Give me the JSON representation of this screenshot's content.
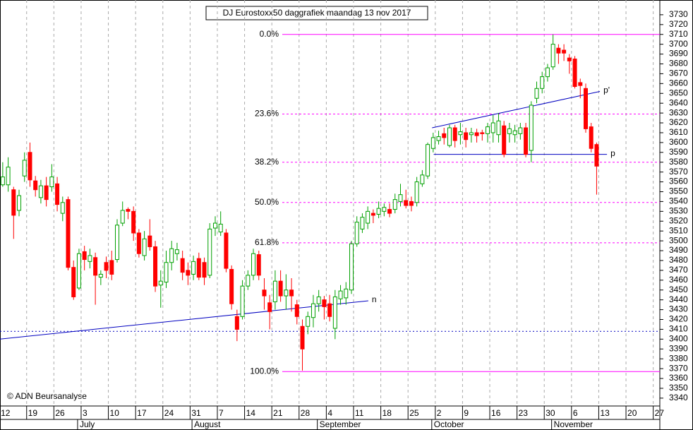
{
  "chart_data": {
    "type": "candlestick",
    "title": "DJ Eurostoxx50 daggrafiek maandag 13 nov 2017",
    "copyright": "© ADN Beursanalyse",
    "open": [
      3557,
      3557,
      3552,
      3531,
      3566,
      3590,
      3561,
      3544,
      3556,
      3555,
      3558,
      3528,
      3542,
      3473,
      3452,
      3489,
      3479,
      3483,
      3463,
      3478,
      3480,
      3481,
      3518,
      3532,
      3530,
      3508,
      3485,
      3505,
      3494,
      3455,
      3458,
      3478,
      3487,
      3482,
      3470,
      3466,
      3482,
      3478,
      3465,
      3513,
      3509,
      3508,
      3471,
      3423,
      3423,
      3454,
      3465,
      3486,
      3450,
      3437,
      3438,
      3459,
      3444,
      3450,
      3435,
      3413,
      3413,
      3422,
      3436,
      3440,
      3436,
      3411,
      3441,
      3442,
      3450,
      3497,
      3512,
      3518,
      3528,
      3527,
      3530,
      3532,
      3532,
      3540,
      3541,
      3540,
      3539,
      3558,
      3566,
      3594,
      3602,
      3609,
      3597,
      3615,
      3608,
      3610,
      3608,
      3610,
      3610,
      3609,
      3610,
      3608,
      3617,
      3609,
      3608,
      3609,
      3615,
      3592,
      3645,
      3655,
      3667,
      3677,
      3696,
      3694,
      3686,
      3685,
      3661,
      3655,
      3616,
      3598
    ],
    "high": [
      3580,
      3585,
      3555,
      3552,
      3590,
      3600,
      3566,
      3562,
      3565,
      3578,
      3565,
      3545,
      3545,
      3480,
      3492,
      3495,
      3492,
      3488,
      3470,
      3484,
      3490,
      3522,
      3540,
      3534,
      3535,
      3512,
      3510,
      3522,
      3500,
      3470,
      3490,
      3500,
      3498,
      3490,
      3478,
      3485,
      3488,
      3483,
      3518,
      3525,
      3530,
      3512,
      3475,
      3430,
      3460,
      3470,
      3492,
      3490,
      3462,
      3445,
      3470,
      3470,
      3466,
      3462,
      3440,
      3420,
      3428,
      3445,
      3450,
      3444,
      3445,
      3450,
      3455,
      3458,
      3500,
      3525,
      3528,
      3535,
      3532,
      3540,
      3538,
      3538,
      3548,
      3558,
      3552,
      3545,
      3565,
      3572,
      3600,
      3610,
      3612,
      3615,
      3618,
      3618,
      3620,
      3615,
      3615,
      3614,
      3613,
      3620,
      3628,
      3630,
      3622,
      3620,
      3618,
      3620,
      3620,
      3642,
      3662,
      3672,
      3680,
      3710,
      3700,
      3700,
      3690,
      3688,
      3665,
      3660,
      3620,
      3600
    ],
    "low": [
      3555,
      3550,
      3502,
      3525,
      3560,
      3555,
      3545,
      3538,
      3535,
      3550,
      3530,
      3520,
      3470,
      3440,
      3450,
      3470,
      3472,
      3435,
      3455,
      3462,
      3460,
      3478,
      3515,
      3522,
      3500,
      3483,
      3480,
      3490,
      3448,
      3432,
      3452,
      3470,
      3480,
      3460,
      3455,
      3460,
      3460,
      3455,
      3462,
      3505,
      3505,
      3468,
      3430,
      3398,
      3420,
      3450,
      3460,
      3460,
      3430,
      3410,
      3430,
      3438,
      3430,
      3428,
      3415,
      3368,
      3405,
      3412,
      3428,
      3420,
      3418,
      3400,
      3435,
      3435,
      3446,
      3494,
      3508,
      3512,
      3518,
      3523,
      3525,
      3524,
      3528,
      3535,
      3533,
      3530,
      3535,
      3555,
      3563,
      3590,
      3598,
      3598,
      3595,
      3595,
      3598,
      3595,
      3600,
      3600,
      3602,
      3600,
      3600,
      3600,
      3585,
      3600,
      3600,
      3603,
      3585,
      3580,
      3640,
      3650,
      3662,
      3674,
      3680,
      3683,
      3670,
      3655,
      3645,
      3610,
      3590,
      3547
    ],
    "close": [
      3565,
      3575,
      3526,
      3546,
      3582,
      3562,
      3552,
      3556,
      3542,
      3565,
      3537,
      3539,
      3473,
      3443,
      3487,
      3481,
      3485,
      3465,
      3466,
      3470,
      3466,
      3516,
      3531,
      3530,
      3508,
      3487,
      3502,
      3494,
      3454,
      3459,
      3478,
      3492,
      3491,
      3468,
      3465,
      3479,
      3463,
      3463,
      3512,
      3518,
      3517,
      3472,
      3436,
      3410,
      3454,
      3465,
      3487,
      3465,
      3444,
      3428,
      3459,
      3444,
      3450,
      3444,
      3423,
      3390,
      3423,
      3436,
      3443,
      3433,
      3423,
      3443,
      3449,
      3451,
      3497,
      3519,
      3524,
      3530,
      3526,
      3533,
      3534,
      3528,
      3542,
      3547,
      3536,
      3536,
      3560,
      3567,
      3598,
      3605,
      3606,
      3605,
      3615,
      3602,
      3611,
      3603,
      3610,
      3607,
      3609,
      3616,
      3620,
      3622,
      3588,
      3614,
      3612,
      3615,
      3588,
      3638,
      3655,
      3667,
      3676,
      3700,
      3691,
      3691,
      3683,
      3657,
      3658,
      3614,
      3594,
      3576
    ],
    "up_color": "#00a000",
    "down_color": "#ff0000",
    "xlim": [
      -0.5,
      120.6
    ],
    "xticks": [
      {
        "value": -1,
        "label": "12"
      },
      {
        "value": 4,
        "label": "19"
      },
      {
        "value": 9,
        "label": "26"
      },
      {
        "value": 14,
        "label": "3"
      },
      {
        "value": 19,
        "label": "10"
      },
      {
        "value": 24,
        "label": "17"
      },
      {
        "value": 29,
        "label": "24"
      },
      {
        "value": 34,
        "label": "31"
      },
      {
        "value": 39,
        "label": "7"
      },
      {
        "value": 44,
        "label": "14"
      },
      {
        "value": 49,
        "label": "21"
      },
      {
        "value": 54,
        "label": "28"
      },
      {
        "value": 59,
        "label": "4"
      },
      {
        "value": 64,
        "label": "11"
      },
      {
        "value": 69,
        "label": "18"
      },
      {
        "value": 74,
        "label": "25"
      },
      {
        "value": 79,
        "label": "2"
      },
      {
        "value": 84,
        "label": "9"
      },
      {
        "value": 89,
        "label": "16"
      },
      {
        "value": 94,
        "label": "23"
      },
      {
        "value": 99,
        "label": "30"
      },
      {
        "value": 104,
        "label": "6"
      },
      {
        "value": 109,
        "label": "13"
      },
      {
        "value": 114,
        "label": "20"
      },
      {
        "value": 119,
        "label": "27"
      }
    ],
    "months": [
      {
        "value": 14,
        "label": "July"
      },
      {
        "value": 35,
        "label": "August"
      },
      {
        "value": 58,
        "label": "September"
      },
      {
        "value": 79,
        "label": "October"
      },
      {
        "value": 101,
        "label": "November"
      }
    ],
    "ylim": [
      3332,
      3745
    ],
    "yticks": [
      3340,
      3350,
      3360,
      3370,
      3380,
      3390,
      3400,
      3410,
      3420,
      3430,
      3440,
      3450,
      3460,
      3470,
      3480,
      3490,
      3500,
      3510,
      3520,
      3530,
      3540,
      3550,
      3560,
      3570,
      3580,
      3590,
      3600,
      3610,
      3620,
      3630,
      3640,
      3650,
      3660,
      3670,
      3680,
      3690,
      3700,
      3710,
      3720,
      3730
    ],
    "fib_levels": [
      {
        "value": 3710,
        "label": "0.0%"
      },
      {
        "value": 3629,
        "label": "23.6%"
      },
      {
        "value": 3580,
        "label": "38.2%"
      },
      {
        "value": 3539,
        "label": "50.0%"
      },
      {
        "value": 3498,
        "label": "61.8%"
      },
      {
        "value": 3367,
        "label": "100.0%"
      }
    ],
    "fib_color": "#ff00ff",
    "trend_lines": [
      {
        "label": "n",
        "x": [
          -0.6,
          67.1
        ],
        "y": [
          3400,
          3439
        ]
      },
      {
        "label": "p'",
        "x": [
          78.8,
          109.6
        ],
        "y": [
          3615,
          3652
        ]
      },
      {
        "label": "p",
        "x": [
          79.1,
          110.9
        ],
        "y": [
          3588,
          3588
        ]
      }
    ],
    "support_level": 3408,
    "line_color": "#0000c0",
    "grid": true
  }
}
